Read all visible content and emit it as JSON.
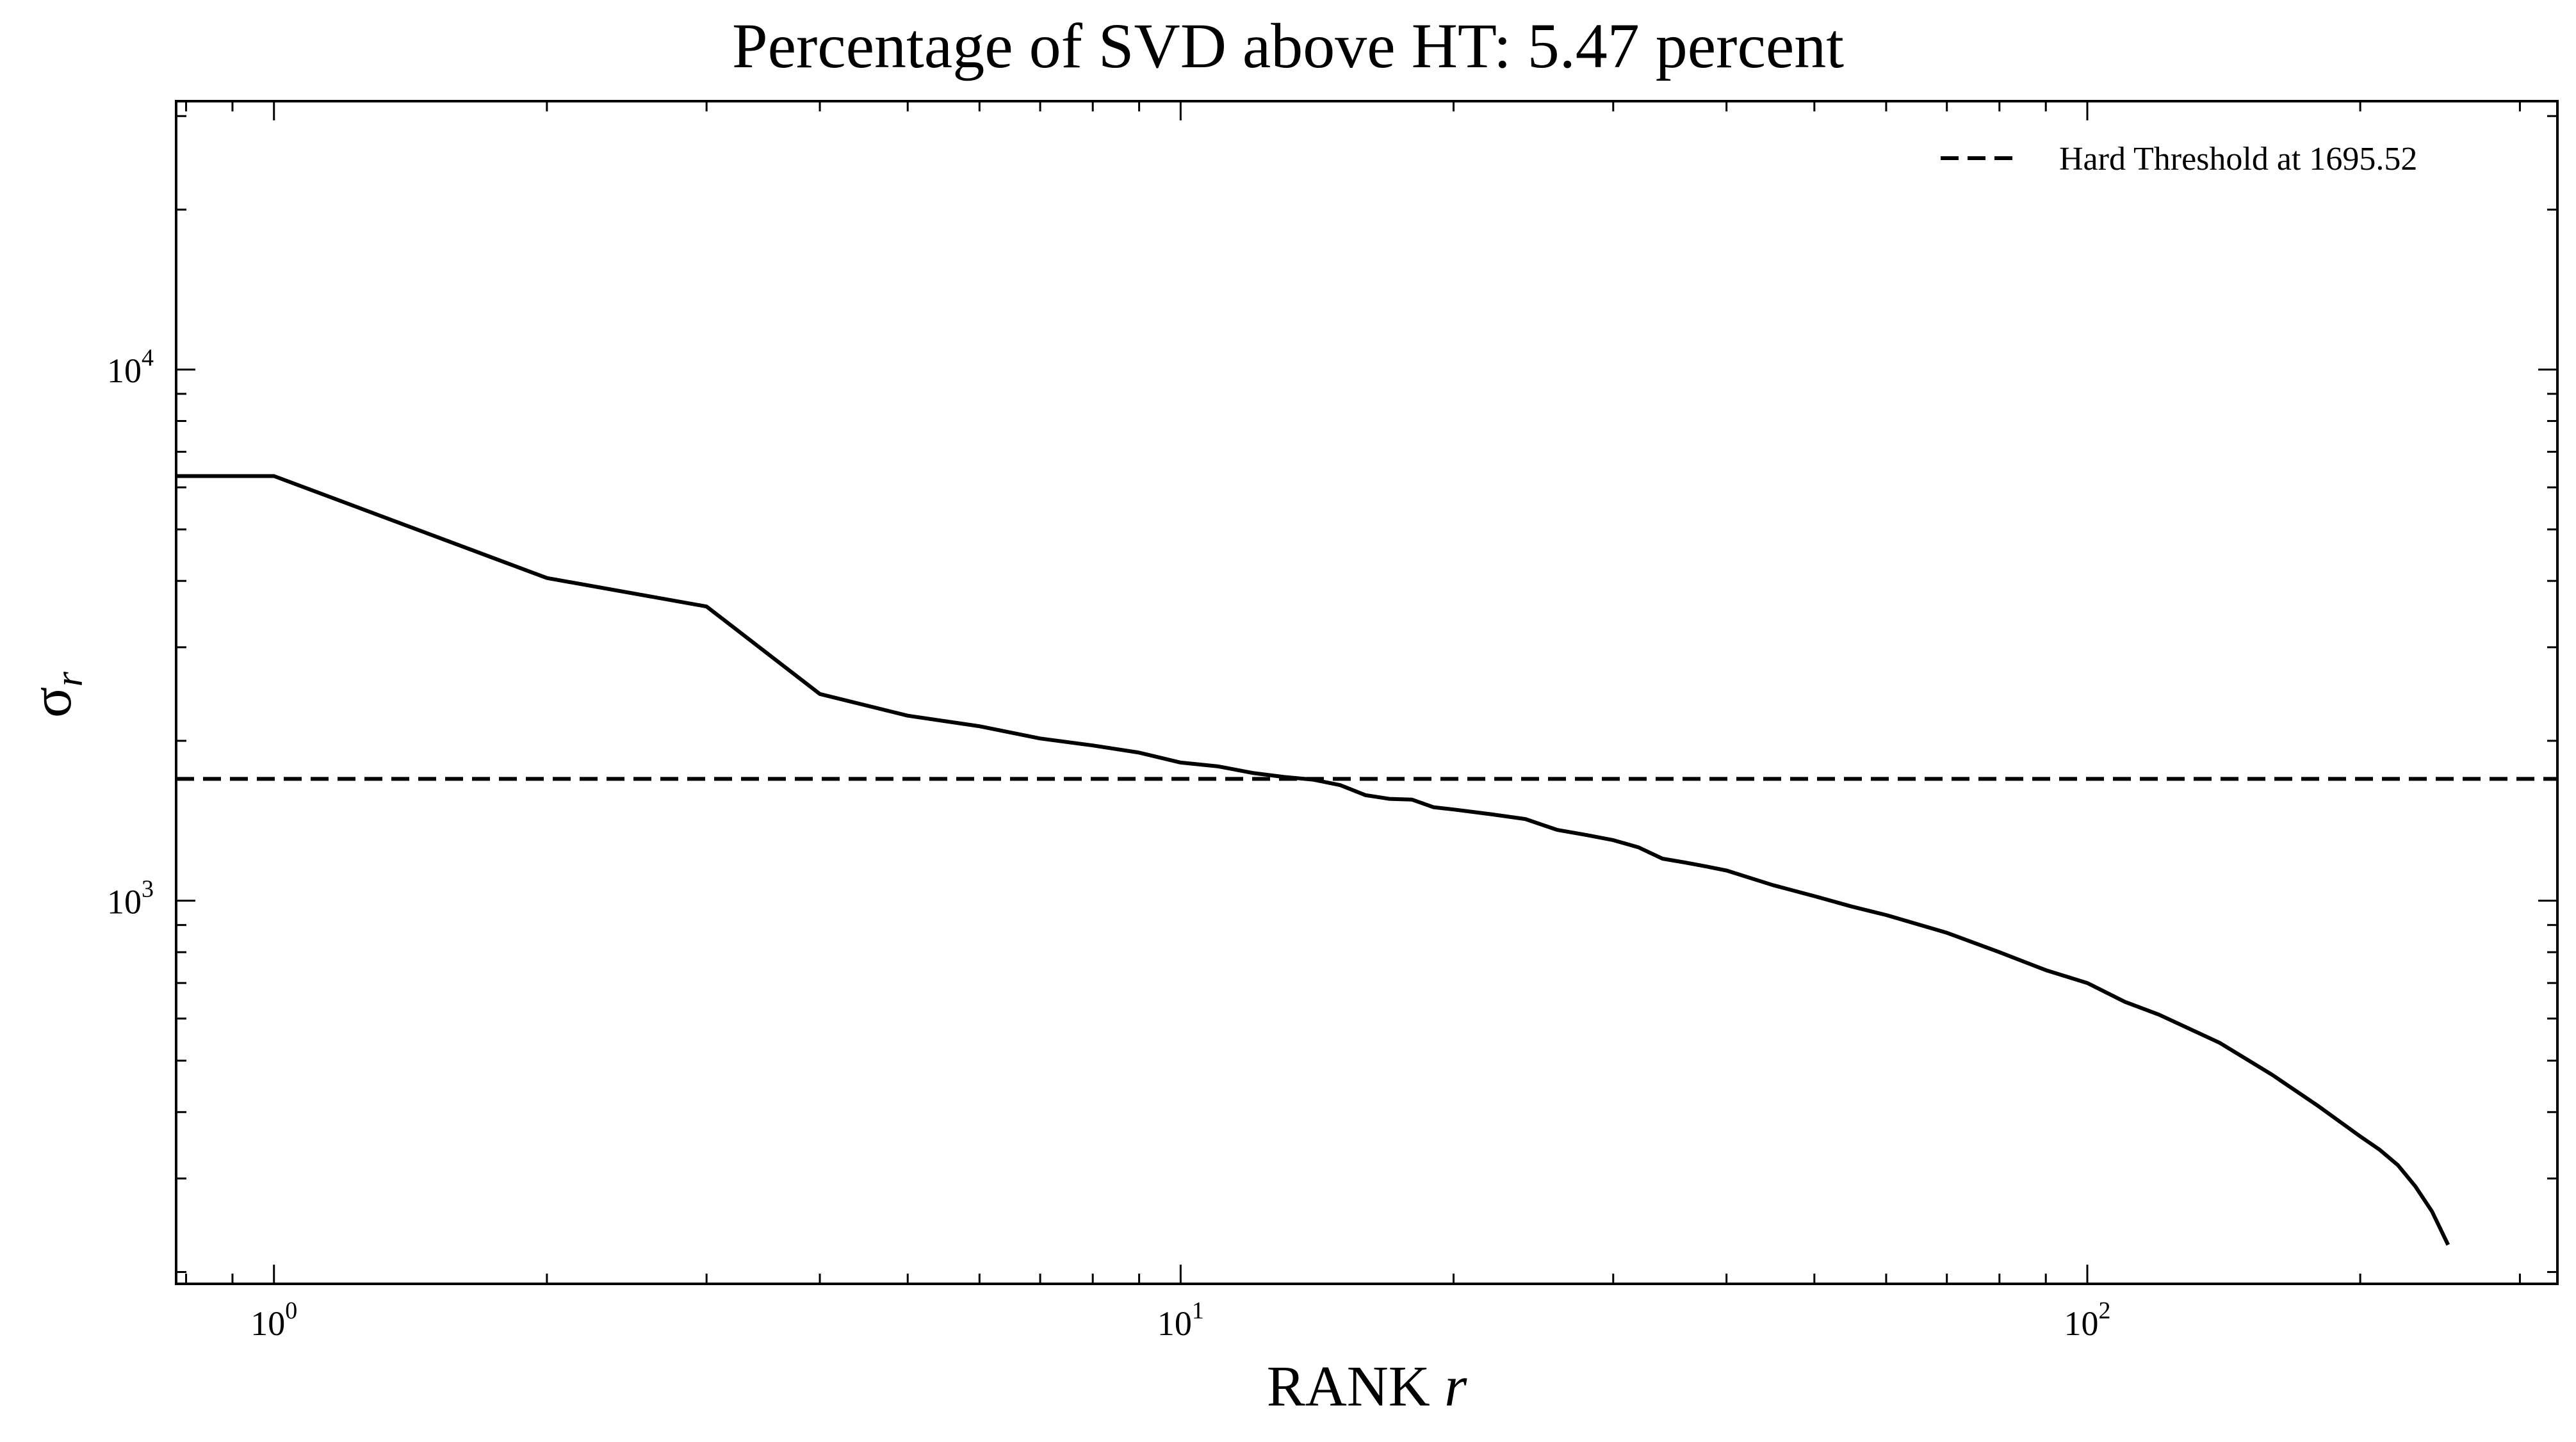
{
  "chart_data": {
    "type": "line",
    "title": "Percentage of SVD above HT: 5.47 percent",
    "xlabel_text": "RANK ",
    "xlabel_var": "r",
    "ylabel_symbol": "σ",
    "ylabel_sub": "r",
    "x_scale": "log",
    "y_scale": "log",
    "xlim": [
      0.78,
      330
    ],
    "ylim": [
      190,
      32000
    ],
    "grid": false,
    "legend_position": "top-right",
    "x_ticks": [
      {
        "base": "10",
        "exp": "0",
        "value": 1
      },
      {
        "base": "10",
        "exp": "1",
        "value": 10
      },
      {
        "base": "10",
        "exp": "2",
        "value": 100
      }
    ],
    "y_ticks": [
      {
        "base": "10",
        "exp": "3",
        "value": 1000
      },
      {
        "base": "10",
        "exp": "4",
        "value": 10000
      }
    ],
    "threshold": {
      "label": "Hard Threshold at 1695.52",
      "value": 1695.52,
      "style": "dashed"
    },
    "series": [
      {
        "style": "solid",
        "x": [
          0.78,
          1,
          2,
          3,
          4,
          5,
          6,
          7,
          8,
          9,
          10,
          11,
          12,
          13,
          14,
          15,
          16,
          17,
          18,
          19,
          20,
          22,
          24,
          26,
          28,
          30,
          32,
          34,
          36,
          38,
          40,
          45,
          50,
          55,
          60,
          70,
          80,
          90,
          100,
          110,
          120,
          140,
          160,
          180,
          200,
          210,
          220,
          230,
          240,
          250
        ],
        "y": [
          6300,
          6300,
          4050,
          3580,
          2450,
          2230,
          2130,
          2020,
          1960,
          1900,
          1820,
          1790,
          1740,
          1710,
          1690,
          1650,
          1580,
          1555,
          1550,
          1500,
          1485,
          1455,
          1425,
          1360,
          1330,
          1300,
          1260,
          1200,
          1180,
          1160,
          1140,
          1070,
          1020,
          975,
          940,
          870,
          800,
          740,
          700,
          645,
          610,
          540,
          470,
          410,
          360,
          340,
          318,
          290,
          260,
          225
        ]
      }
    ]
  }
}
